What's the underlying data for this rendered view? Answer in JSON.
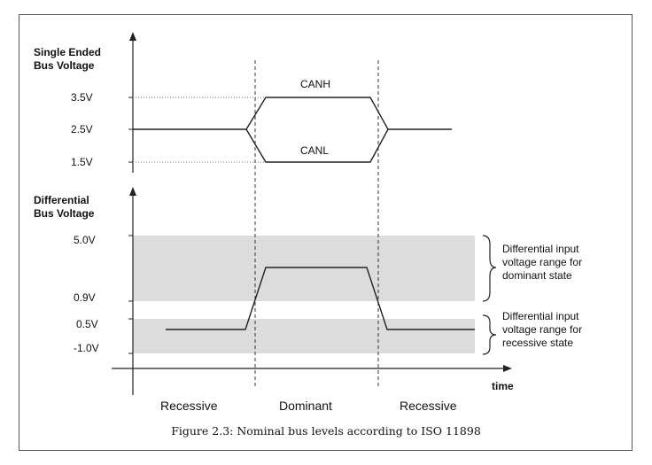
{
  "top_axis": {
    "title_line1": "Single Ended",
    "title_line2": "Bus Voltage",
    "ticks": [
      "3.5V",
      "2.5V",
      "1.5V"
    ]
  },
  "top_signals": {
    "canh": "CANH",
    "canl": "CANL"
  },
  "bottom_axis": {
    "title_line1": "Differential",
    "title_line2": "Bus Voltage",
    "ticks": [
      "5.0V",
      "0.9V",
      "0.5V",
      "-1.0V"
    ]
  },
  "annotations": {
    "dominant_line1": "Differential input",
    "dominant_line2": "voltage range for",
    "dominant_line3": "dominant state",
    "recessive_line1": "Differential input",
    "recessive_line2": "voltage range for",
    "recessive_line3": "recessive state"
  },
  "time_label": "time",
  "regions": [
    "Recessive",
    "Dominant",
    "Recessive"
  ],
  "caption": "Figure 2.3: Nominal bus levels according to ISO 11898",
  "colors": {
    "band": "#dcdcdc",
    "line": "#222222"
  }
}
